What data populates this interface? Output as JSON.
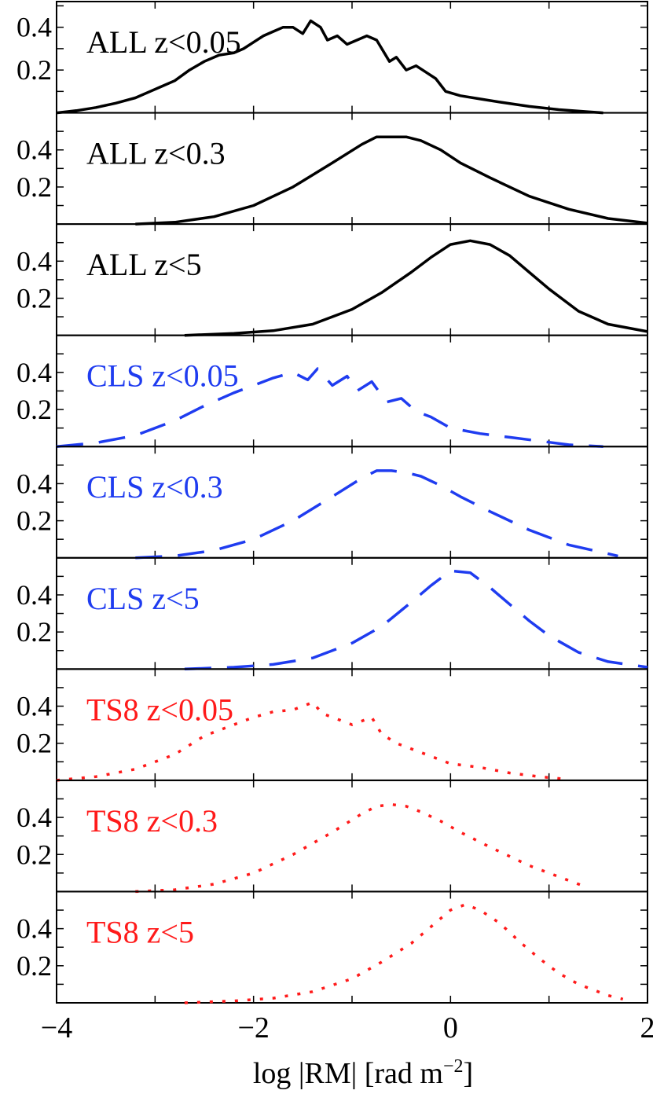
{
  "chart_data": {
    "type": "line",
    "xlabel_base": "log |RM| [rad m",
    "xlabel_sup": "−2",
    "xlabel_close": "]",
    "xlim": [
      -4,
      2
    ],
    "x_ticks": [
      -4,
      -3,
      -2,
      -1,
      0,
      1,
      2
    ],
    "x_tick_labels": [
      "−4",
      "−2",
      "0",
      "2"
    ],
    "x_tick_label_values": [
      -4,
      -2,
      0,
      2
    ],
    "colors": {
      "ALL": "#000000",
      "CLS": "#1f3cf0",
      "TS8": "#ff1a1a"
    },
    "panels": [
      {
        "label": "ALL z<0.05",
        "group": "ALL",
        "style": "solid",
        "ylim": [
          0,
          0.52
        ],
        "y_ticks": [
          0.1,
          0.2,
          0.3,
          0.4,
          0.5
        ],
        "y_tick_labels": [
          "0.4",
          "0.2"
        ],
        "y_tick_label_values": [
          0.4,
          0.2
        ],
        "x": [
          -4,
          -3.8,
          -3.6,
          -3.4,
          -3.2,
          -3.05,
          -2.95,
          -2.8,
          -2.65,
          -2.5,
          -2.35,
          -2.2,
          -2.1,
          -2.0,
          -1.9,
          -1.8,
          -1.7,
          -1.6,
          -1.5,
          -1.42,
          -1.32,
          -1.25,
          -1.15,
          -1.05,
          -0.95,
          -0.85,
          -0.75,
          -0.62,
          -0.55,
          -0.45,
          -0.35,
          -0.25,
          -0.15,
          -0.05,
          0.1,
          0.3,
          0.5,
          0.8,
          1.1,
          1.4,
          1.55
        ],
        "y": [
          0.0,
          0.01,
          0.025,
          0.045,
          0.07,
          0.1,
          0.12,
          0.15,
          0.2,
          0.24,
          0.27,
          0.28,
          0.3,
          0.33,
          0.36,
          0.38,
          0.4,
          0.4,
          0.37,
          0.43,
          0.4,
          0.34,
          0.36,
          0.32,
          0.34,
          0.36,
          0.34,
          0.24,
          0.26,
          0.2,
          0.22,
          0.19,
          0.16,
          0.1,
          0.08,
          0.065,
          0.05,
          0.03,
          0.015,
          0.005,
          0.0
        ]
      },
      {
        "label": "ALL z<0.3",
        "group": "ALL",
        "style": "solid",
        "ylim": [
          0,
          0.6
        ],
        "y_ticks": [
          0.1,
          0.2,
          0.3,
          0.4,
          0.5
        ],
        "y_tick_labels": [
          "0.4",
          "0.2"
        ],
        "y_tick_label_values": [
          0.4,
          0.2
        ],
        "x": [
          -3.2,
          -2.8,
          -2.4,
          -2.0,
          -1.6,
          -1.2,
          -0.9,
          -0.75,
          -0.6,
          -0.45,
          -0.3,
          -0.1,
          0.1,
          0.4,
          0.8,
          1.2,
          1.6,
          2.0
        ],
        "y": [
          0.0,
          0.01,
          0.04,
          0.1,
          0.2,
          0.33,
          0.43,
          0.47,
          0.47,
          0.47,
          0.45,
          0.4,
          0.33,
          0.25,
          0.15,
          0.08,
          0.03,
          0.005
        ]
      },
      {
        "label": "ALL z<5",
        "group": "ALL",
        "style": "solid",
        "ylim": [
          0,
          0.6
        ],
        "y_ticks": [
          0.1,
          0.2,
          0.3,
          0.4,
          0.5
        ],
        "y_tick_labels": [
          "0.4",
          "0.2"
        ],
        "y_tick_label_values": [
          0.4,
          0.2
        ],
        "x": [
          -2.7,
          -2.2,
          -1.8,
          -1.4,
          -1.0,
          -0.7,
          -0.4,
          -0.2,
          0.0,
          0.2,
          0.4,
          0.6,
          0.8,
          1.0,
          1.3,
          1.6,
          2.0
        ],
        "y": [
          0.0,
          0.01,
          0.025,
          0.06,
          0.14,
          0.23,
          0.34,
          0.42,
          0.49,
          0.51,
          0.49,
          0.43,
          0.34,
          0.25,
          0.13,
          0.06,
          0.02
        ]
      },
      {
        "label": "CLS z<0.05",
        "group": "CLS",
        "style": "dashed",
        "ylim": [
          0,
          0.6
        ],
        "y_ticks": [
          0.1,
          0.2,
          0.3,
          0.4,
          0.5
        ],
        "y_tick_labels": [
          "0.4",
          "0.2"
        ],
        "y_tick_label_values": [
          0.4,
          0.2
        ],
        "x": [
          -4,
          -3.6,
          -3.2,
          -2.8,
          -2.5,
          -2.2,
          -2.0,
          -1.8,
          -1.6,
          -1.45,
          -1.35,
          -1.2,
          -1.05,
          -0.95,
          -0.8,
          -0.65,
          -0.5,
          -0.35,
          -0.2,
          0.0,
          0.3,
          0.6,
          0.9,
          1.2,
          1.55
        ],
        "y": [
          0.0,
          0.02,
          0.06,
          0.14,
          0.22,
          0.29,
          0.33,
          0.37,
          0.4,
          0.36,
          0.42,
          0.33,
          0.38,
          0.3,
          0.35,
          0.24,
          0.26,
          0.19,
          0.16,
          0.1,
          0.07,
          0.05,
          0.03,
          0.01,
          0.0
        ]
      },
      {
        "label": "CLS z<0.3",
        "group": "CLS",
        "style": "dashed",
        "ylim": [
          0,
          0.6
        ],
        "y_ticks": [
          0.1,
          0.2,
          0.3,
          0.4,
          0.5
        ],
        "y_tick_labels": [
          "0.4",
          "0.2"
        ],
        "y_tick_label_values": [
          0.4,
          0.2
        ],
        "x": [
          -3.2,
          -2.8,
          -2.4,
          -2.0,
          -1.6,
          -1.2,
          -0.9,
          -0.75,
          -0.6,
          -0.45,
          -0.3,
          -0.1,
          0.1,
          0.4,
          0.8,
          1.2,
          1.7
        ],
        "y": [
          0.0,
          0.01,
          0.04,
          0.1,
          0.2,
          0.33,
          0.43,
          0.47,
          0.47,
          0.46,
          0.44,
          0.39,
          0.33,
          0.25,
          0.15,
          0.07,
          0.01
        ]
      },
      {
        "label": "CLS z<5",
        "group": "CLS",
        "style": "dashed",
        "ylim": [
          0,
          0.6
        ],
        "y_ticks": [
          0.1,
          0.2,
          0.3,
          0.4,
          0.5
        ],
        "y_tick_labels": [
          "0.4",
          "0.2"
        ],
        "y_tick_label_values": [
          0.4,
          0.2
        ],
        "x": [
          -2.7,
          -2.2,
          -1.8,
          -1.4,
          -1.0,
          -0.7,
          -0.4,
          -0.2,
          0.0,
          0.2,
          0.4,
          0.6,
          0.8,
          1.0,
          1.3,
          1.6,
          2.0
        ],
        "y": [
          0.0,
          0.01,
          0.025,
          0.06,
          0.14,
          0.23,
          0.36,
          0.45,
          0.53,
          0.52,
          0.44,
          0.35,
          0.26,
          0.18,
          0.09,
          0.04,
          0.01
        ]
      },
      {
        "label": "TS8 z<0.05",
        "group": "TS8",
        "style": "dotted",
        "ylim": [
          0,
          0.6
        ],
        "y_ticks": [
          0.1,
          0.2,
          0.3,
          0.4,
          0.5
        ],
        "y_tick_labels": [
          "0.4",
          "0.2"
        ],
        "y_tick_label_values": [
          0.4,
          0.2
        ],
        "x": [
          -4,
          -3.6,
          -3.2,
          -2.8,
          -2.5,
          -2.2,
          -2.0,
          -1.8,
          -1.6,
          -1.4,
          -1.3,
          -1.15,
          -1.0,
          -0.8,
          -0.7,
          -0.55,
          -0.4,
          -0.2,
          0.0,
          0.3,
          0.6,
          0.9,
          1.2
        ],
        "y": [
          0.0,
          0.02,
          0.06,
          0.14,
          0.24,
          0.3,
          0.34,
          0.37,
          0.38,
          0.42,
          0.36,
          0.33,
          0.3,
          0.34,
          0.25,
          0.2,
          0.17,
          0.13,
          0.09,
          0.07,
          0.04,
          0.02,
          0.005
        ]
      },
      {
        "label": "TS8 z<0.3",
        "group": "TS8",
        "style": "dotted",
        "ylim": [
          0,
          0.6
        ],
        "y_ticks": [
          0.1,
          0.2,
          0.3,
          0.4,
          0.5
        ],
        "y_tick_labels": [
          "0.4",
          "0.2"
        ],
        "y_tick_label_values": [
          0.4,
          0.2
        ],
        "x": [
          -3.2,
          -2.8,
          -2.4,
          -2.0,
          -1.6,
          -1.2,
          -0.9,
          -0.75,
          -0.6,
          -0.45,
          -0.3,
          -0.1,
          0.1,
          0.4,
          0.8,
          1.2,
          1.4
        ],
        "y": [
          0.0,
          0.01,
          0.04,
          0.1,
          0.2,
          0.32,
          0.42,
          0.46,
          0.47,
          0.46,
          0.43,
          0.38,
          0.32,
          0.24,
          0.14,
          0.06,
          0.02
        ]
      },
      {
        "label": "TS8 z<5",
        "group": "TS8",
        "style": "dotted",
        "ylim": [
          0,
          0.6
        ],
        "y_ticks": [
          0.1,
          0.2,
          0.3,
          0.4,
          0.5
        ],
        "y_tick_labels": [
          "0.4",
          "0.2"
        ],
        "y_tick_label_values": [
          0.4,
          0.2
        ],
        "x": [
          -2.7,
          -2.2,
          -1.8,
          -1.4,
          -1.0,
          -0.7,
          -0.4,
          -0.2,
          0.0,
          0.15,
          0.3,
          0.5,
          0.7,
          0.9,
          1.1,
          1.3,
          1.6,
          1.75
        ],
        "y": [
          0.0,
          0.01,
          0.025,
          0.06,
          0.13,
          0.22,
          0.32,
          0.41,
          0.5,
          0.53,
          0.5,
          0.43,
          0.33,
          0.24,
          0.16,
          0.1,
          0.04,
          0.02
        ]
      }
    ]
  }
}
